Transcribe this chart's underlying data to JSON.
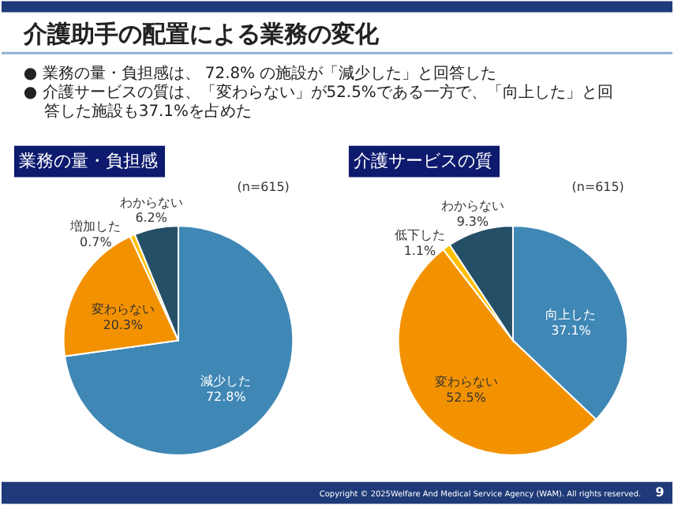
{
  "chart_data": [
    {
      "type": "other",
      "title": "介護助手の配置による業務の変化",
      "annotations": [
        "● 業務の量・負担感は、 72.8% の施設が「減少した」と回答した",
        "● 介護サービスの質は、「変わらない」が52.5%である一方で、「向上した」と回答した施設も37.1%を占めた",
        "Copyright © 2025Welfare And Medical Service Agency (WAM). All rights reserved.",
        "9"
      ]
    },
    {
      "type": "pie",
      "title": "業務の量・負担感",
      "subtitle": "(n=615)",
      "categories": [
        "減少した",
        "変わらない",
        "増加した",
        "わからない"
      ],
      "values": [
        72.8,
        20.3,
        0.7,
        6.2
      ],
      "colors": [
        "#3f87b5",
        "#f39200",
        "#ffc000",
        "#244f67"
      ],
      "value_labels": [
        "72.8%",
        "20.3%",
        "0.7%",
        "6.2%"
      ]
    },
    {
      "type": "pie",
      "title": "介護サービスの質",
      "subtitle": "(n=615)",
      "categories": [
        "向上した",
        "変わらない",
        "低下した",
        "わからない"
      ],
      "values": [
        37.1,
        52.5,
        1.1,
        9.3
      ],
      "colors": [
        "#3f87b5",
        "#f39200",
        "#ffc000",
        "#244f67"
      ],
      "value_labels": [
        "37.1%",
        "52.5%",
        "1.1%",
        "9.3%"
      ]
    }
  ]
}
